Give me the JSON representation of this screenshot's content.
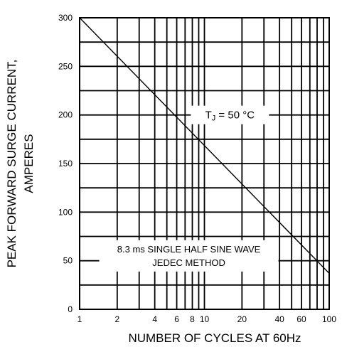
{
  "chart_data": {
    "type": "line",
    "title": "",
    "xlabel": "NUMBER OF CYCLES AT 60Hz",
    "ylabel_lines": [
      "PEAK FORWARD SURGE CURRENT,",
      "AMPERES"
    ],
    "x_scale": "log",
    "xlim": [
      1,
      100
    ],
    "ylim": [
      0,
      300
    ],
    "grid": true,
    "x_ticks": [
      {
        "value": 1,
        "label": "1"
      },
      {
        "value": 2,
        "label": "2"
      },
      {
        "value": 4,
        "label": "4"
      },
      {
        "value": 6,
        "label": "6"
      },
      {
        "value": 8,
        "label": "8"
      },
      {
        "value": 10,
        "label": "10"
      },
      {
        "value": 20,
        "label": "20"
      },
      {
        "value": 40,
        "label": "40"
      },
      {
        "value": 60,
        "label": "60"
      },
      {
        "value": 100,
        "label": "100"
      }
    ],
    "x_minor_grid": [
      3,
      5,
      7,
      9,
      30,
      50,
      70,
      80,
      90
    ],
    "y_ticks": [
      {
        "value": 0,
        "label": "0"
      },
      {
        "value": 50,
        "label": "50"
      },
      {
        "value": 100,
        "label": "100"
      },
      {
        "value": 150,
        "label": "150"
      },
      {
        "value": 200,
        "label": "200"
      },
      {
        "value": 250,
        "label": "250"
      },
      {
        "value": 300,
        "label": "300"
      }
    ],
    "y_minor_grid": [
      25,
      75,
      125,
      175,
      225,
      275
    ],
    "series": [
      {
        "x": [
          1,
          100
        ],
        "y": [
          300,
          37
        ]
      }
    ],
    "annotations": {
      "temp": {
        "prefix": "T",
        "sub": "J",
        "suffix": " = 50 °C",
        "x": 16,
        "y": 200
      },
      "wave_lines": [
        "8.3 ms SINGLE HALF SINE WAVE",
        "JEDEC METHOD"
      ],
      "wave_x": 7.5,
      "wave_y": 55
    }
  }
}
